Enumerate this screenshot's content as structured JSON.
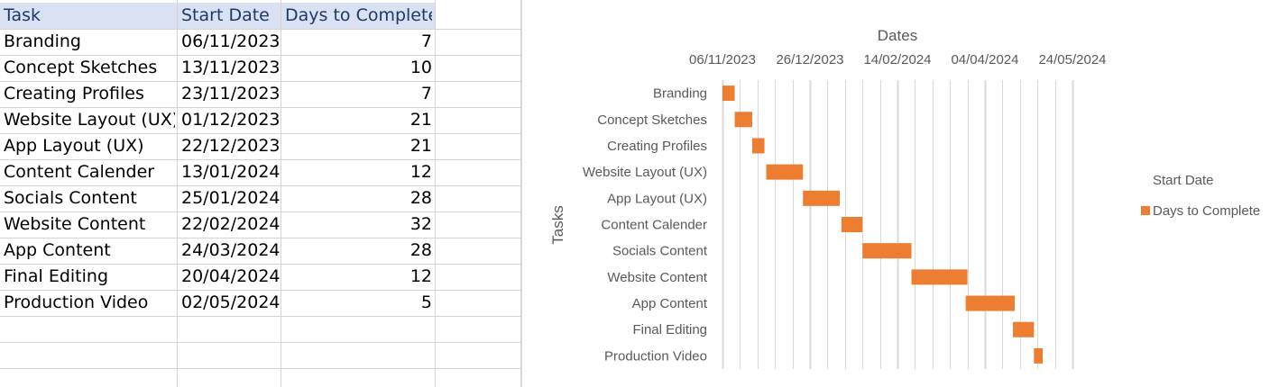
{
  "sheet": {
    "headers": [
      "Task",
      "Start Date",
      "Days to Complete"
    ],
    "rows": [
      [
        "Branding",
        "06/11/2023",
        "7"
      ],
      [
        "Concept Sketches",
        "13/11/2023",
        "10"
      ],
      [
        "Creating Profiles",
        "23/11/2023",
        "7"
      ],
      [
        "Website Layout (UX)",
        "01/12/2023",
        "21"
      ],
      [
        "App Layout (UX)",
        "22/12/2023",
        "21"
      ],
      [
        "Content Calender",
        "13/01/2024",
        "12"
      ],
      [
        "Socials Content",
        "25/01/2024",
        "28"
      ],
      [
        "Website Content",
        "22/02/2024",
        "32"
      ],
      [
        "App Content",
        "24/03/2024",
        "28"
      ],
      [
        "Final Editing",
        "20/04/2024",
        "12"
      ],
      [
        "Production Video",
        "02/05/2024",
        "5"
      ]
    ]
  },
  "chart_data": {
    "type": "bar",
    "orientation": "horizontal-stacked",
    "title": "",
    "xlabel": "Dates",
    "ylabel": "Tasks",
    "x_tick_labels": [
      "06/11/2023",
      "26/12/2023",
      "14/02/2024",
      "04/04/2024",
      "24/05/2024"
    ],
    "xlim": [
      "06/11/2023",
      "24/05/2024"
    ],
    "x_axis_position": "top",
    "grid": true,
    "categories": [
      "Branding",
      "Concept Sketches",
      "Creating Profiles",
      "Website Layout (UX)",
      "App Layout (UX)",
      "Content Calender",
      "Socials Content",
      "Website Content",
      "App Content",
      "Final Editing",
      "Production Video"
    ],
    "series": [
      {
        "name": "Start Date",
        "color": "none",
        "values": [
          "06/11/2023",
          "13/11/2023",
          "23/11/2023",
          "01/12/2023",
          "22/12/2023",
          "13/01/2024",
          "25/01/2024",
          "22/02/2024",
          "24/03/2024",
          "20/04/2024",
          "02/05/2024"
        ]
      },
      {
        "name": "Days to Complete",
        "color": "#ed7d31",
        "values": [
          7,
          10,
          7,
          21,
          21,
          12,
          28,
          32,
          28,
          12,
          5
        ]
      }
    ],
    "legend_position": "right"
  }
}
